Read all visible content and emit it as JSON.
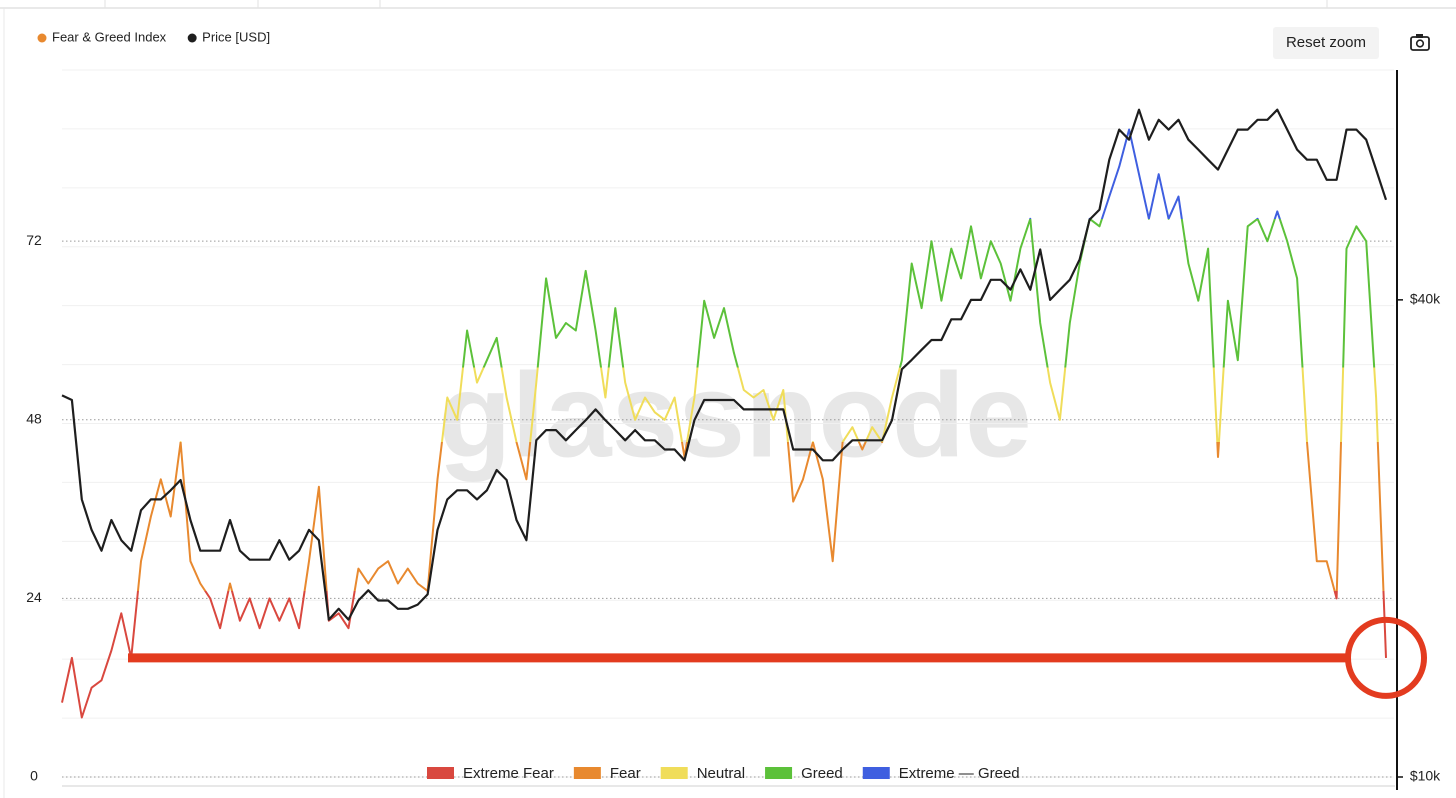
{
  "chart_data": {
    "type": "line",
    "watermark": "glassnode",
    "button": "Reset zoom",
    "series": [
      {
        "name": "Fear & Greed Index",
        "color": "#e8892f",
        "values": [
          10,
          16,
          8,
          12,
          13,
          17,
          22,
          16,
          29,
          35,
          40,
          35,
          45,
          29,
          26,
          24,
          20,
          26,
          21,
          24,
          20,
          24,
          21,
          24,
          20,
          29,
          39,
          21,
          22,
          20,
          28,
          26,
          28,
          29,
          26,
          28,
          26,
          25,
          40,
          51,
          48,
          60,
          53,
          56,
          59,
          51,
          45,
          40,
          53,
          67,
          59,
          61,
          60,
          68,
          60,
          51,
          63,
          53,
          48,
          51,
          49,
          48,
          51,
          43,
          51,
          64,
          59,
          63,
          57,
          52,
          51,
          52,
          48,
          52,
          37,
          40,
          45,
          40,
          29,
          45,
          47,
          44,
          47,
          45,
          51,
          56,
          69,
          63,
          72,
          64,
          71,
          67,
          74,
          67,
          72,
          69,
          64,
          71,
          75,
          61,
          53,
          48,
          61,
          69,
          75,
          74,
          78,
          82,
          87,
          81,
          75,
          81,
          75,
          78,
          69,
          64,
          71,
          43,
          64,
          56,
          74,
          75,
          72,
          76,
          72,
          67,
          45,
          29,
          29,
          24,
          71,
          74,
          72,
          51,
          16
        ]
      },
      {
        "name": "Price [USD]",
        "color": "#1e1e1e",
        "axis": "y2",
        "values": [
          30300,
          29900,
          22400,
          20500,
          19300,
          21100,
          19900,
          19300,
          21700,
          22400,
          22400,
          23000,
          23700,
          21100,
          19300,
          19300,
          19300,
          21100,
          19300,
          18800,
          18800,
          18800,
          19900,
          18800,
          19300,
          20500,
          19900,
          15800,
          16300,
          15800,
          16700,
          17200,
          16700,
          16700,
          16300,
          16300,
          16500,
          17000,
          20500,
          22400,
          23000,
          23000,
          22400,
          23000,
          24400,
          23700,
          21100,
          19900,
          26600,
          27400,
          27400,
          26600,
          27400,
          28200,
          29100,
          28200,
          27400,
          26600,
          27400,
          26600,
          26600,
          25900,
          25900,
          25100,
          28200,
          29900,
          29900,
          29900,
          29900,
          29100,
          29100,
          29100,
          29100,
          29100,
          25900,
          25900,
          25900,
          25100,
          25100,
          25900,
          26600,
          26600,
          26600,
          26600,
          28200,
          32700,
          33600,
          34600,
          35600,
          35600,
          37800,
          37800,
          40000,
          40000,
          42400,
          42400,
          41200,
          43700,
          41200,
          46300,
          40000,
          41200,
          42400,
          45000,
          50500,
          52000,
          60100,
          65600,
          63700,
          69500,
          63700,
          67500,
          65600,
          67500,
          63700,
          61900,
          60100,
          58400,
          61900,
          65600,
          65600,
          67500,
          67500,
          69500,
          65600,
          61900,
          60100,
          60100,
          56700,
          56700,
          65600,
          65600,
          63700,
          58400,
          53500
        ]
      }
    ],
    "zones": [
      {
        "name": "Extreme Fear",
        "color": "#d9483f"
      },
      {
        "name": "Fear",
        "color": "#e8892f"
      },
      {
        "name": "Neutral",
        "color": "#f0dd5a"
      },
      {
        "name": "Greed",
        "color": "#5cc13a"
      },
      {
        "name": "Extreme — Greed",
        "color": "#3f5fe0"
      }
    ],
    "ylim": [
      0,
      95
    ],
    "yticks": [
      0,
      24,
      48,
      72
    ],
    "y2lim": [
      10000,
      78000
    ],
    "y2log": true,
    "y2ticks": [
      {
        "value": 10000,
        "label": "$10k"
      },
      {
        "value": 40000,
        "label": "$40k"
      }
    ],
    "annotation_color": "#e33b1f"
  }
}
